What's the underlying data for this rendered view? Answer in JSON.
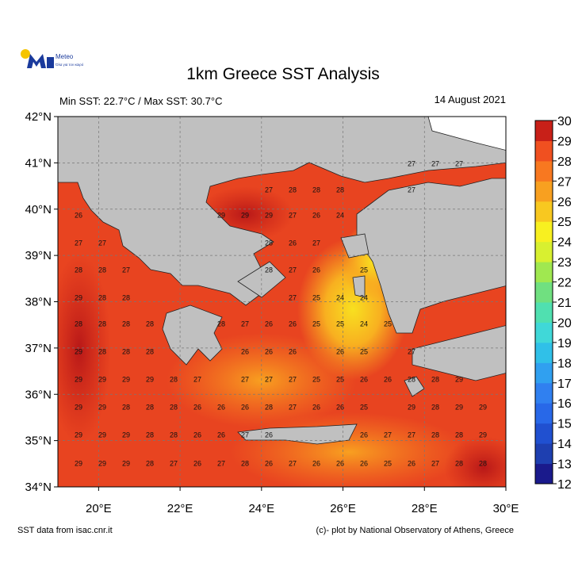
{
  "header": {
    "logo_text": "Meteo",
    "logo_tagline": "Όλα για τον καιρό",
    "title": "1km Greece SST Analysis",
    "subtitle": "Min SST: 22.7°C / Max SST: 30.7°C",
    "date": "14 August 2021"
  },
  "map": {
    "xlim": [
      19,
      30
    ],
    "ylim": [
      34,
      42
    ],
    "xticks": [
      {
        "value": 20,
        "label": "20°E"
      },
      {
        "value": 22,
        "label": "22°E"
      },
      {
        "value": 24,
        "label": "24°E"
      },
      {
        "value": 26,
        "label": "26°E"
      },
      {
        "value": 28,
        "label": "28°E"
      },
      {
        "value": 30,
        "label": "30°E"
      }
    ],
    "yticks": [
      {
        "value": 34,
        "label": "34°N"
      },
      {
        "value": 35,
        "label": "35°N"
      },
      {
        "value": 36,
        "label": "36°N"
      },
      {
        "value": 37,
        "label": "37°N"
      },
      {
        "value": 38,
        "label": "38°N"
      },
      {
        "value": 39,
        "label": "39°N"
      },
      {
        "value": 40,
        "label": "40°N"
      },
      {
        "value": 41,
        "label": "41°N"
      },
      {
        "value": 42,
        "label": "42°N"
      }
    ],
    "sst_labels": [
      [
        null,
        null,
        null,
        null,
        null,
        null,
        null,
        null,
        null,
        null,
        null,
        null,
        null,
        null,
        27,
        27,
        27,
        null
      ],
      [
        null,
        null,
        null,
        null,
        null,
        null,
        null,
        null,
        27,
        28,
        28,
        28,
        null,
        null,
        27,
        null,
        null,
        null
      ],
      [
        26,
        null,
        null,
        null,
        null,
        null,
        29,
        29,
        29,
        27,
        26,
        24,
        null,
        null,
        null,
        null,
        null,
        null
      ],
      [
        27,
        27,
        null,
        null,
        null,
        null,
        null,
        null,
        28,
        26,
        27,
        null,
        null,
        null,
        null,
        null,
        null,
        null
      ],
      [
        28,
        28,
        27,
        null,
        null,
        null,
        null,
        null,
        28,
        27,
        26,
        null,
        25,
        null,
        null,
        null,
        null,
        null
      ],
      [
        29,
        28,
        28,
        null,
        null,
        null,
        null,
        null,
        null,
        27,
        25,
        24,
        24,
        null,
        null,
        null,
        null,
        null
      ],
      [
        28,
        28,
        28,
        28,
        null,
        null,
        28,
        27,
        26,
        26,
        25,
        25,
        24,
        25,
        null,
        null,
        null,
        null
      ],
      [
        29,
        28,
        28,
        28,
        null,
        null,
        null,
        26,
        26,
        26,
        null,
        26,
        25,
        null,
        27,
        null,
        null,
        null
      ],
      [
        29,
        29,
        29,
        29,
        28,
        27,
        null,
        27,
        27,
        27,
        25,
        25,
        26,
        26,
        28,
        28,
        29,
        null
      ],
      [
        29,
        29,
        28,
        28,
        28,
        26,
        26,
        26,
        28,
        27,
        26,
        26,
        25,
        null,
        29,
        28,
        29,
        29
      ],
      [
        29,
        29,
        29,
        28,
        28,
        26,
        26,
        27,
        26,
        null,
        null,
        null,
        26,
        27,
        27,
        28,
        28,
        29
      ],
      [
        29,
        29,
        29,
        28,
        27,
        26,
        27,
        28,
        26,
        27,
        26,
        26,
        26,
        25,
        26,
        27,
        28,
        28
      ]
    ]
  },
  "colorbar": {
    "ticks": [
      12,
      13,
      14,
      15,
      16,
      17,
      18,
      19,
      20,
      21,
      22,
      23,
      24,
      25,
      26,
      27,
      28,
      29,
      30
    ],
    "colors": [
      "#1a1a8c",
      "#1e3fb0",
      "#2050d0",
      "#2868e8",
      "#3080f0",
      "#30a0f0",
      "#30c0e8",
      "#40d8d8",
      "#50e0b0",
      "#70e080",
      "#a0e850",
      "#d8f030",
      "#f8f020",
      "#f8c820",
      "#f8a020",
      "#f87820",
      "#f05020",
      "#c82018"
    ]
  },
  "footer": {
    "source": "SST data from isac.cnr.it",
    "credit": "(c)- plot by National Observatory of Athens, Greece"
  }
}
